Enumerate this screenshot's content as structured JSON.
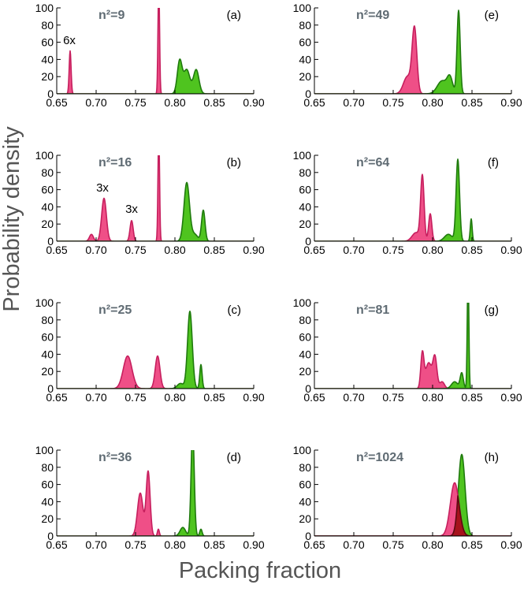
{
  "figure": {
    "xlabel": "Packing fraction",
    "ylabel": "Probability density"
  },
  "style": {
    "pink_fill": "#ef4f87",
    "pink_line": "#c61f5e",
    "green_fill": "#4fc41f",
    "green_line": "#1f7a0d",
    "dark_fill": "#a6121c",
    "dark_line": "#5c0a10",
    "nlabel_color": "#5f6b73"
  },
  "chart_data": [
    {
      "panel": "(a)",
      "n_label": "n²=9",
      "type": "area",
      "xlim": [
        0.65,
        0.9
      ],
      "ylim": [
        0,
        100
      ],
      "xticks": [
        "0.65",
        "0.70",
        "0.75",
        "0.80",
        "0.85",
        "0.90"
      ],
      "yticks": [
        "0",
        "20",
        "40",
        "60",
        "80",
        "100"
      ],
      "annotations": [
        {
          "text": "6x",
          "x": 0.666,
          "y": 58
        }
      ],
      "series": [
        {
          "name": "pink",
          "color": "pink",
          "peaks": [
            {
              "mu": 0.667,
              "sigma": 0.0012,
              "amp": 50
            },
            {
              "mu": 0.7795,
              "sigma": 0.001,
              "amp": 130
            }
          ]
        },
        {
          "name": "green",
          "color": "green",
          "peaks": [
            {
              "mu": 0.806,
              "sigma": 0.003,
              "amp": 38
            },
            {
              "mu": 0.815,
              "sigma": 0.004,
              "amp": 28
            },
            {
              "mu": 0.827,
              "sigma": 0.0035,
              "amp": 28
            }
          ]
        }
      ]
    },
    {
      "panel": "(b)",
      "n_label": "n²=16",
      "type": "area",
      "xlim": [
        0.65,
        0.9
      ],
      "ylim": [
        0,
        100
      ],
      "xticks": [
        "0.65",
        "0.70",
        "0.75",
        "0.80",
        "0.85",
        "0.90"
      ],
      "yticks": [
        "0",
        "20",
        "40",
        "60",
        "80",
        "100"
      ],
      "annotations": [
        {
          "text": "3x",
          "x": 0.708,
          "y": 58
        },
        {
          "text": "3x",
          "x": 0.745,
          "y": 33
        }
      ],
      "series": [
        {
          "name": "pink",
          "color": "pink",
          "peaks": [
            {
              "mu": 0.694,
              "sigma": 0.0025,
              "amp": 8
            },
            {
              "mu": 0.71,
              "sigma": 0.003,
              "amp": 50
            },
            {
              "mu": 0.745,
              "sigma": 0.002,
              "amp": 24
            },
            {
              "mu": 0.7795,
              "sigma": 0.001,
              "amp": 130
            }
          ]
        },
        {
          "name": "green",
          "color": "green",
          "peaks": [
            {
              "mu": 0.815,
              "sigma": 0.0035,
              "amp": 68
            },
            {
              "mu": 0.825,
              "sigma": 0.004,
              "amp": 8
            },
            {
              "mu": 0.836,
              "sigma": 0.0022,
              "amp": 36
            }
          ]
        }
      ]
    },
    {
      "panel": "(c)",
      "n_label": "n²=25",
      "type": "area",
      "xlim": [
        0.65,
        0.9
      ],
      "ylim": [
        0,
        100
      ],
      "xticks": [
        "0.65",
        "0.70",
        "0.75",
        "0.80",
        "0.85",
        "0.90"
      ],
      "yticks": [
        "0",
        "20",
        "40",
        "60",
        "80",
        "100"
      ],
      "annotations": [],
      "series": [
        {
          "name": "pink",
          "color": "pink",
          "peaks": [
            {
              "mu": 0.74,
              "sigma": 0.0055,
              "amp": 38
            },
            {
              "mu": 0.778,
              "sigma": 0.003,
              "amp": 38
            }
          ]
        },
        {
          "name": "green",
          "color": "green",
          "peaks": [
            {
              "mu": 0.807,
              "sigma": 0.004,
              "amp": 6
            },
            {
              "mu": 0.819,
              "sigma": 0.003,
              "amp": 90
            },
            {
              "mu": 0.833,
              "sigma": 0.0015,
              "amp": 28
            }
          ]
        }
      ]
    },
    {
      "panel": "(d)",
      "n_label": "n²=36",
      "type": "area",
      "xlim": [
        0.65,
        0.9
      ],
      "ylim": [
        0,
        100
      ],
      "xticks": [
        "0.65",
        "0.70",
        "0.75",
        "0.80",
        "0.85",
        "0.90"
      ],
      "yticks": [
        "0",
        "20",
        "40",
        "60",
        "80",
        "100"
      ],
      "annotations": [],
      "series": [
        {
          "name": "pink",
          "color": "pink",
          "peaks": [
            {
              "mu": 0.756,
              "sigma": 0.0035,
              "amp": 50
            },
            {
              "mu": 0.766,
              "sigma": 0.0025,
              "amp": 75
            },
            {
              "mu": 0.779,
              "sigma": 0.0012,
              "amp": 8
            }
          ]
        },
        {
          "name": "green",
          "color": "green",
          "peaks": [
            {
              "mu": 0.81,
              "sigma": 0.0035,
              "amp": 10
            },
            {
              "mu": 0.8225,
              "sigma": 0.002,
              "amp": 125
            },
            {
              "mu": 0.833,
              "sigma": 0.0015,
              "amp": 8
            }
          ]
        }
      ]
    },
    {
      "panel": "(e)",
      "n_label": "n²=49",
      "type": "area",
      "xlim": [
        0.65,
        0.9
      ],
      "ylim": [
        0,
        100
      ],
      "xticks": [
        "0.65",
        "0.70",
        "0.75",
        "0.80",
        "0.85",
        "0.90"
      ],
      "yticks": [
        "0",
        "20",
        "40",
        "60",
        "80",
        "100"
      ],
      "annotations": [],
      "series": [
        {
          "name": "pink",
          "color": "pink",
          "peaks": [
            {
              "mu": 0.768,
              "sigma": 0.005,
              "amp": 20
            },
            {
              "mu": 0.777,
              "sigma": 0.003,
              "amp": 75
            }
          ]
        },
        {
          "name": "green",
          "color": "green",
          "peaks": [
            {
              "mu": 0.812,
              "sigma": 0.006,
              "amp": 15
            },
            {
              "mu": 0.822,
              "sigma": 0.0035,
              "amp": 18
            },
            {
              "mu": 0.833,
              "sigma": 0.002,
              "amp": 97
            }
          ]
        }
      ]
    },
    {
      "panel": "(f)",
      "n_label": "n²=64",
      "type": "area",
      "xlim": [
        0.65,
        0.9
      ],
      "ylim": [
        0,
        100
      ],
      "xticks": [
        "0.65",
        "0.70",
        "0.75",
        "0.80",
        "0.85",
        "0.90"
      ],
      "yticks": [
        "0",
        "20",
        "40",
        "60",
        "80",
        "100"
      ],
      "annotations": [],
      "series": [
        {
          "name": "pink",
          "color": "pink",
          "peaks": [
            {
              "mu": 0.779,
              "sigma": 0.005,
              "amp": 10
            },
            {
              "mu": 0.787,
              "sigma": 0.0022,
              "amp": 75
            },
            {
              "mu": 0.797,
              "sigma": 0.002,
              "amp": 32
            }
          ]
        },
        {
          "name": "green",
          "color": "green",
          "peaks": [
            {
              "mu": 0.82,
              "sigma": 0.005,
              "amp": 8
            },
            {
              "mu": 0.832,
              "sigma": 0.0022,
              "amp": 95
            },
            {
              "mu": 0.849,
              "sigma": 0.0012,
              "amp": 26
            }
          ]
        }
      ]
    },
    {
      "panel": "(g)",
      "n_label": "n²=81",
      "type": "area",
      "xlim": [
        0.65,
        0.9
      ],
      "ylim": [
        0,
        100
      ],
      "xticks": [
        "0.65",
        "0.70",
        "0.75",
        "0.80",
        "0.85",
        "0.90"
      ],
      "yticks": [
        "0",
        "20",
        "40",
        "60",
        "80",
        "100"
      ],
      "annotations": [],
      "series": [
        {
          "name": "pink",
          "color": "pink",
          "peaks": [
            {
              "mu": 0.787,
              "sigma": 0.002,
              "amp": 40
            },
            {
              "mu": 0.795,
              "sigma": 0.004,
              "amp": 30
            },
            {
              "mu": 0.803,
              "sigma": 0.0025,
              "amp": 35
            },
            {
              "mu": 0.812,
              "sigma": 0.003,
              "amp": 8
            }
          ]
        },
        {
          "name": "green",
          "color": "green",
          "peaks": [
            {
              "mu": 0.828,
              "sigma": 0.004,
              "amp": 8
            },
            {
              "mu": 0.837,
              "sigma": 0.002,
              "amp": 18
            },
            {
              "mu": 0.845,
              "sigma": 0.001,
              "amp": 140
            }
          ]
        }
      ]
    },
    {
      "panel": "(h)",
      "n_label": "n²=1024",
      "type": "area",
      "xlim": [
        0.65,
        0.9
      ],
      "ylim": [
        0,
        100
      ],
      "xticks": [
        "0.65",
        "0.70",
        "0.75",
        "0.80",
        "0.85",
        "0.90"
      ],
      "yticks": [
        "0",
        "20",
        "40",
        "60",
        "80",
        "100"
      ],
      "annotations": [],
      "series": [
        {
          "name": "green",
          "color": "green",
          "peaks": [
            {
              "mu": 0.837,
              "sigma": 0.0042,
              "amp": 95
            }
          ]
        },
        {
          "name": "pink",
          "color": "pink",
          "peaks": [
            {
              "mu": 0.828,
              "sigma": 0.0055,
              "amp": 62
            }
          ]
        },
        {
          "name": "overlap",
          "color": "dark",
          "overlap_of": [
            "pink",
            "green"
          ]
        }
      ]
    }
  ]
}
